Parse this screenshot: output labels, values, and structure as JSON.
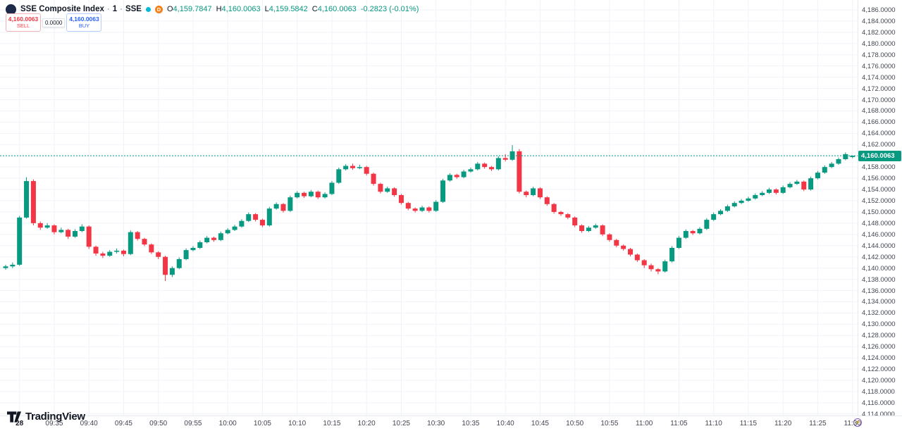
{
  "header": {
    "name": "SSE Composite Index",
    "sep": "·",
    "interval": "1",
    "exchange": "SSE",
    "delayed_badge": "D",
    "ohlc": {
      "o_label": "O",
      "o": "4,159.7847",
      "h_label": "H",
      "h": "4,160.0063",
      "l_label": "L",
      "l": "4,159.5842",
      "c_label": "C",
      "c": "4,160.0063",
      "change": "-0.2823 (-0.01%)"
    }
  },
  "trade_panel": {
    "sell_price": "4,160.0063",
    "sell_label": "SELL",
    "spread": "0.0000",
    "buy_price": "4,160.0063",
    "buy_label": "BUY"
  },
  "brand": {
    "name": "TradingView"
  },
  "colors": {
    "up": "#089981",
    "down": "#F23645",
    "sell": "#F23645",
    "buy": "#2962FF",
    "current_price_line": "#089981",
    "grid": "#f0f3fa",
    "delayed_badge_bg": "#f57f17"
  },
  "price_axis": {
    "labels": [
      "4,186.0000",
      "4,184.0000",
      "4,182.0000",
      "4,180.0000",
      "4,178.0000",
      "4,176.0000",
      "4,174.0000",
      "4,172.0000",
      "4,170.0000",
      "4,168.0000",
      "4,166.0000",
      "4,164.0000",
      "4,162.0000",
      "4,160.0000",
      "4,158.0000",
      "4,156.0000",
      "4,154.0000",
      "4,152.0000",
      "4,150.0000",
      "4,148.0000",
      "4,146.0000",
      "4,144.0000",
      "4,142.0000",
      "4,140.0000",
      "4,138.0000",
      "4,136.0000",
      "4,134.0000",
      "4,132.0000",
      "4,130.0000",
      "4,128.0000",
      "4,126.0000",
      "4,124.0000",
      "4,122.0000",
      "4,120.0000",
      "4,118.0000",
      "4,116.0000",
      "4,114.0000"
    ],
    "current_price_label": "4,160.0063"
  },
  "time_axis": {
    "ticks": [
      {
        "label": "28",
        "index": 2,
        "bold": true
      },
      {
        "label": "09:35",
        "index": 7,
        "bold": false
      },
      {
        "label": "09:40",
        "index": 12,
        "bold": false
      },
      {
        "label": "09:45",
        "index": 17,
        "bold": false
      },
      {
        "label": "09:50",
        "index": 22,
        "bold": false
      },
      {
        "label": "09:55",
        "index": 27,
        "bold": false
      },
      {
        "label": "10:00",
        "index": 32,
        "bold": false
      },
      {
        "label": "10:05",
        "index": 37,
        "bold": false
      },
      {
        "label": "10:10",
        "index": 42,
        "bold": false
      },
      {
        "label": "10:15",
        "index": 47,
        "bold": false
      },
      {
        "label": "10:20",
        "index": 52,
        "bold": false
      },
      {
        "label": "10:25",
        "index": 57,
        "bold": false
      },
      {
        "label": "10:30",
        "index": 62,
        "bold": false
      },
      {
        "label": "10:35",
        "index": 67,
        "bold": false
      },
      {
        "label": "10:40",
        "index": 72,
        "bold": false
      },
      {
        "label": "10:45",
        "index": 77,
        "bold": false
      },
      {
        "label": "10:50",
        "index": 82,
        "bold": false
      },
      {
        "label": "10:55",
        "index": 87,
        "bold": false
      },
      {
        "label": "11:00",
        "index": 92,
        "bold": false
      },
      {
        "label": "11:05",
        "index": 97,
        "bold": false
      },
      {
        "label": "11:10",
        "index": 102,
        "bold": false
      },
      {
        "label": "11:15",
        "index": 107,
        "bold": false
      },
      {
        "label": "11:20",
        "index": 112,
        "bold": false
      },
      {
        "label": "11:25",
        "index": 117,
        "bold": false
      },
      {
        "label": "11:30",
        "index": 122,
        "bold": false
      }
    ]
  },
  "chart_data": {
    "type": "candlestick",
    "title": "SSE Composite Index · 1 · SSE",
    "interval_minutes": 1,
    "start_time": "09:28",
    "end_time": "11:30",
    "price_axis_min": 4114.0,
    "price_axis_max": 4186.0,
    "price_axis_step": 2.0,
    "current_price": 4160.0063,
    "change": -0.2823,
    "change_pct": -0.01,
    "last_candle": {
      "open": 4159.7847,
      "high": 4160.0063,
      "low": 4159.5842,
      "close": 4160.0063
    },
    "colors": {
      "up": "#089981",
      "down": "#F23645"
    },
    "candles_format": [
      "open",
      "high",
      "low",
      "close"
    ],
    "candles": [
      [
        4140.0,
        4140.6,
        4139.7,
        4140.3
      ],
      [
        4140.3,
        4141.0,
        4140.0,
        4140.6
      ],
      [
        4140.6,
        4149.3,
        4140.4,
        4149.0
      ],
      [
        4149.0,
        4156.2,
        4148.8,
        4155.5
      ],
      [
        4155.5,
        4155.8,
        4147.6,
        4148.0
      ],
      [
        4148.0,
        4148.3,
        4146.8,
        4147.2
      ],
      [
        4147.2,
        4148.0,
        4147.0,
        4147.6
      ],
      [
        4147.6,
        4147.8,
        4146.0,
        4146.4
      ],
      [
        4146.4,
        4147.2,
        4146.2,
        4146.8
      ],
      [
        4146.8,
        4147.0,
        4145.2,
        4145.6
      ],
      [
        4145.6,
        4146.9,
        4145.4,
        4146.6
      ],
      [
        4146.6,
        4147.8,
        4146.4,
        4147.4
      ],
      [
        4147.4,
        4147.6,
        4143.4,
        4143.8
      ],
      [
        4143.8,
        4144.0,
        4142.2,
        4142.6
      ],
      [
        4142.6,
        4142.9,
        4141.8,
        4142.2
      ],
      [
        4142.2,
        4143.2,
        4142.0,
        4142.9
      ],
      [
        4142.9,
        4143.5,
        4142.6,
        4143.1
      ],
      [
        4143.1,
        4143.3,
        4142.1,
        4142.5
      ],
      [
        4142.5,
        4146.7,
        4142.3,
        4146.4
      ],
      [
        4146.4,
        4146.6,
        4144.9,
        4145.2
      ],
      [
        4145.2,
        4145.4,
        4143.9,
        4144.2
      ],
      [
        4144.2,
        4144.4,
        4142.5,
        4142.8
      ],
      [
        4142.8,
        4143.0,
        4141.6,
        4142.0
      ],
      [
        4142.0,
        4142.2,
        4137.7,
        4138.8
      ],
      [
        4138.8,
        4140.3,
        4138.4,
        4140.0
      ],
      [
        4140.0,
        4141.9,
        4139.8,
        4141.6
      ],
      [
        4141.6,
        4143.5,
        4141.4,
        4143.2
      ],
      [
        4143.2,
        4143.9,
        4143.0,
        4143.6
      ],
      [
        4143.6,
        4144.9,
        4143.4,
        4144.6
      ],
      [
        4144.6,
        4145.7,
        4144.4,
        4145.4
      ],
      [
        4145.4,
        4145.6,
        4144.7,
        4145.0
      ],
      [
        4145.0,
        4146.5,
        4144.8,
        4146.2
      ],
      [
        4146.2,
        4147.1,
        4146.0,
        4146.8
      ],
      [
        4146.8,
        4147.7,
        4146.6,
        4147.4
      ],
      [
        4147.4,
        4148.7,
        4147.2,
        4148.4
      ],
      [
        4148.4,
        4149.9,
        4148.2,
        4149.6
      ],
      [
        4149.6,
        4149.8,
        4148.3,
        4148.6
      ],
      [
        4148.6,
        4148.8,
        4147.3,
        4147.6
      ],
      [
        4147.6,
        4150.9,
        4147.4,
        4150.6
      ],
      [
        4150.6,
        4151.7,
        4150.4,
        4151.4
      ],
      [
        4151.4,
        4151.6,
        4149.9,
        4150.2
      ],
      [
        4150.2,
        4152.9,
        4150.0,
        4152.6
      ],
      [
        4152.6,
        4153.7,
        4152.4,
        4153.4
      ],
      [
        4153.4,
        4153.6,
        4152.5,
        4152.8
      ],
      [
        4152.8,
        4153.9,
        4152.6,
        4153.6
      ],
      [
        4153.6,
        4153.8,
        4152.3,
        4152.6
      ],
      [
        4152.6,
        4153.5,
        4152.4,
        4153.2
      ],
      [
        4153.2,
        4155.5,
        4153.0,
        4155.2
      ],
      [
        4155.2,
        4157.9,
        4155.0,
        4157.6
      ],
      [
        4157.6,
        4158.5,
        4157.4,
        4158.2
      ],
      [
        4158.2,
        4158.6,
        4157.5,
        4157.8
      ],
      [
        4157.8,
        4158.4,
        4157.6,
        4158.0
      ],
      [
        4158.0,
        4158.2,
        4156.5,
        4156.8
      ],
      [
        4156.8,
        4157.0,
        4154.7,
        4155.0
      ],
      [
        4155.0,
        4155.2,
        4153.3,
        4153.6
      ],
      [
        4153.6,
        4154.5,
        4153.4,
        4154.2
      ],
      [
        4154.2,
        4154.4,
        4152.7,
        4153.0
      ],
      [
        4153.0,
        4153.2,
        4151.3,
        4151.6
      ],
      [
        4151.6,
        4151.8,
        4150.3,
        4150.6
      ],
      [
        4150.6,
        4150.8,
        4149.9,
        4150.2
      ],
      [
        4150.2,
        4151.1,
        4150.0,
        4150.8
      ],
      [
        4150.8,
        4151.0,
        4149.9,
        4150.2
      ],
      [
        4150.2,
        4152.1,
        4150.0,
        4151.8
      ],
      [
        4151.8,
        4155.9,
        4151.6,
        4155.6
      ],
      [
        4155.6,
        4156.9,
        4155.4,
        4156.6
      ],
      [
        4156.6,
        4156.8,
        4155.9,
        4156.2
      ],
      [
        4156.2,
        4157.5,
        4156.0,
        4157.2
      ],
      [
        4157.2,
        4157.9,
        4157.0,
        4157.6
      ],
      [
        4157.6,
        4158.9,
        4157.4,
        4158.6
      ],
      [
        4158.6,
        4158.8,
        4157.7,
        4158.0
      ],
      [
        4158.0,
        4158.2,
        4157.3,
        4157.6
      ],
      [
        4157.6,
        4159.9,
        4157.4,
        4159.6
      ],
      [
        4159.6,
        4160.3,
        4159.0,
        4159.3
      ],
      [
        4159.3,
        4161.9,
        4159.1,
        4160.8
      ],
      [
        4160.8,
        4161.2,
        4153.3,
        4153.6
      ],
      [
        4153.6,
        4153.8,
        4152.6,
        4153.0
      ],
      [
        4153.0,
        4154.5,
        4152.8,
        4154.2
      ],
      [
        4154.2,
        4154.4,
        4152.3,
        4152.6
      ],
      [
        4152.6,
        4152.8,
        4151.1,
        4151.4
      ],
      [
        4151.4,
        4151.6,
        4149.7,
        4150.0
      ],
      [
        4150.0,
        4150.2,
        4149.3,
        4149.6
      ],
      [
        4149.6,
        4149.8,
        4148.7,
        4149.0
      ],
      [
        4149.0,
        4149.2,
        4147.3,
        4147.6
      ],
      [
        4147.6,
        4147.8,
        4146.3,
        4146.6
      ],
      [
        4146.6,
        4147.5,
        4146.4,
        4147.2
      ],
      [
        4147.2,
        4147.9,
        4147.0,
        4147.6
      ],
      [
        4147.6,
        4147.8,
        4145.7,
        4146.0
      ],
      [
        4146.0,
        4146.2,
        4144.7,
        4145.0
      ],
      [
        4145.0,
        4145.2,
        4143.7,
        4144.0
      ],
      [
        4144.0,
        4144.2,
        4143.1,
        4143.4
      ],
      [
        4143.4,
        4143.6,
        4142.1,
        4142.4
      ],
      [
        4142.4,
        4142.6,
        4141.1,
        4141.4
      ],
      [
        4141.4,
        4141.6,
        4140.0,
        4140.5
      ],
      [
        4140.5,
        4140.8,
        4139.4,
        4139.8
      ],
      [
        4139.8,
        4140.0,
        4138.9,
        4139.4
      ],
      [
        4139.4,
        4141.5,
        4139.2,
        4141.2
      ],
      [
        4141.2,
        4143.9,
        4141.0,
        4143.6
      ],
      [
        4143.6,
        4145.7,
        4143.4,
        4145.4
      ],
      [
        4145.4,
        4146.9,
        4145.2,
        4146.6
      ],
      [
        4146.6,
        4146.8,
        4145.9,
        4146.2
      ],
      [
        4146.2,
        4147.3,
        4146.0,
        4147.0
      ],
      [
        4147.0,
        4148.9,
        4146.8,
        4148.6
      ],
      [
        4148.6,
        4149.9,
        4148.4,
        4149.6
      ],
      [
        4149.6,
        4150.5,
        4149.4,
        4150.2
      ],
      [
        4150.2,
        4151.3,
        4150.0,
        4151.0
      ],
      [
        4151.0,
        4151.9,
        4150.8,
        4151.6
      ],
      [
        4151.6,
        4152.3,
        4151.4,
        4152.0
      ],
      [
        4152.0,
        4152.7,
        4151.8,
        4152.4
      ],
      [
        4152.4,
        4153.3,
        4152.2,
        4153.0
      ],
      [
        4153.0,
        4153.7,
        4152.8,
        4153.4
      ],
      [
        4153.4,
        4154.3,
        4153.2,
        4154.0
      ],
      [
        4154.0,
        4154.2,
        4153.1,
        4153.4
      ],
      [
        4153.4,
        4154.7,
        4153.2,
        4154.4
      ],
      [
        4154.4,
        4155.3,
        4154.2,
        4155.0
      ],
      [
        4155.0,
        4155.7,
        4154.8,
        4155.4
      ],
      [
        4155.4,
        4155.6,
        4153.7,
        4154.0
      ],
      [
        4154.0,
        4156.3,
        4153.8,
        4156.0
      ],
      [
        4156.0,
        4157.3,
        4155.8,
        4157.0
      ],
      [
        4157.0,
        4158.3,
        4156.8,
        4158.0
      ],
      [
        4158.0,
        4158.9,
        4157.8,
        4158.6
      ],
      [
        4158.6,
        4159.7,
        4158.4,
        4159.4
      ],
      [
        4159.4,
        4160.6,
        4159.2,
        4160.2886
      ],
      [
        4159.7847,
        4160.0063,
        4159.5842,
        4160.0063
      ]
    ]
  }
}
